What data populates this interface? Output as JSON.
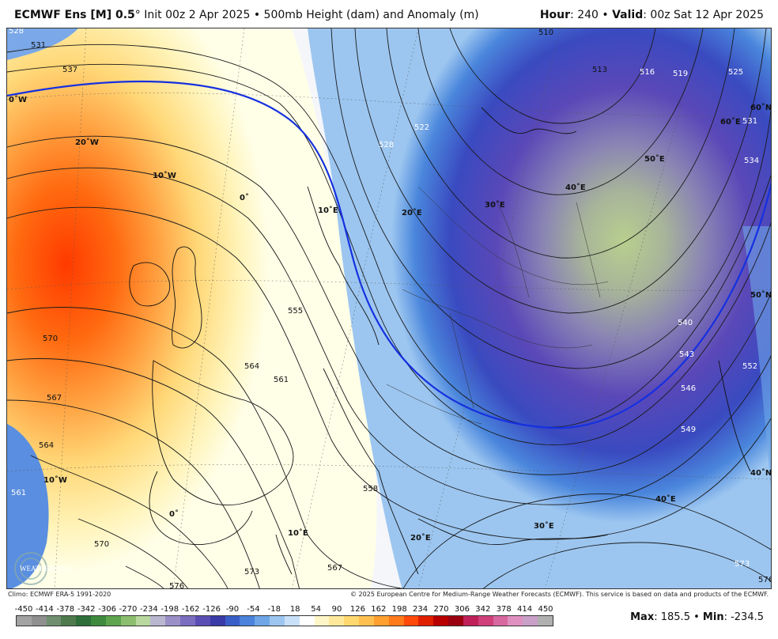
{
  "header": {
    "model": "ECMWF Ens [M] 0.5",
    "degree": "°",
    "init": "Init 00z 2 Apr 2025",
    "bullet": "•",
    "field": "500mb Height (dam) and Anomaly (m)",
    "hour_label": "Hour",
    "hour_value": ": 240",
    "valid_label": "Valid",
    "valid_value": ": 00z Sat 12 Apr 2025"
  },
  "map": {
    "contour_labels": [
      "510",
      "513",
      "516",
      "519",
      "522",
      "525",
      "528",
      "531",
      "534",
      "537",
      "540",
      "543",
      "546",
      "549",
      "552",
      "555",
      "558",
      "561",
      "564",
      "567",
      "570",
      "573",
      "576",
      "528",
      "531",
      "561",
      "564",
      "567",
      "570",
      "573",
      "576"
    ],
    "graticule_labels": [
      "0˚W",
      "20˚W",
      "10˚W",
      "0˚",
      "10˚E",
      "20˚E",
      "30˚E",
      "40˚E",
      "50˚E",
      "60˚E",
      "60˚N",
      "50˚N",
      "40˚N",
      "40˚E",
      "30˚E",
      "20˚E",
      "10˚E",
      "10˚W",
      "0˚"
    ],
    "logo_text": "WEATHERBELL"
  },
  "credits": {
    "left": "Climo: ECMWF ERA-5 1991-2020",
    "right": "© 2025 European Centre for Medium-Range Weather Forecasts (ECMWF). This service is based on data and products of the ECMWF."
  },
  "colorbar": {
    "ticks": [
      "-450",
      "-414",
      "-378",
      "-342",
      "-306",
      "-270",
      "-234",
      "-198",
      "-162",
      "-126",
      "-90",
      "-54",
      "-18",
      "18",
      "54",
      "90",
      "126",
      "162",
      "198",
      "234",
      "270",
      "306",
      "342",
      "378",
      "414",
      "450"
    ],
    "colors": [
      "#a3a3a3",
      "#8f8f8f",
      "#6f8f6f",
      "#4e7a4e",
      "#2e6e3a",
      "#3d8a3d",
      "#5ea34e",
      "#8cbe70",
      "#b8d8a0",
      "#b9b7d0",
      "#9b8fc8",
      "#7b6ec0",
      "#5a4eb4",
      "#3a3aa8",
      "#3a5ec8",
      "#4a82dc",
      "#6ea6e8",
      "#9cc6f0",
      "#c8e0f8",
      "#ffffff",
      "#fff6c8",
      "#ffe89a",
      "#ffd870",
      "#ffc050",
      "#ffa030",
      "#ff7a1a",
      "#ff4a0a",
      "#e02000",
      "#b80000",
      "#9a0010",
      "#c0205a",
      "#d0407a",
      "#d868a0",
      "#e090c0",
      "#c8a0c8",
      "#b0b0b0"
    ]
  },
  "stats": {
    "max_label": "Max",
    "max_value": ": 185.5",
    "min_label": "Min",
    "min_value": ": -234.5",
    "sep": "•"
  }
}
